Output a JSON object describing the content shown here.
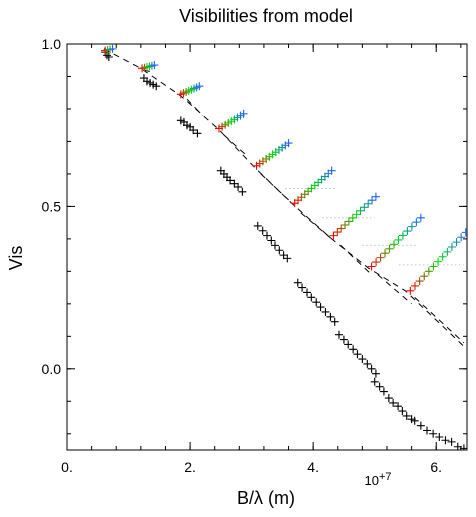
{
  "chart_data": {
    "type": "scatter",
    "title": "Visibilities from model",
    "xlabel": "B/λ (m)",
    "ylabel": "Vis",
    "x_multiplier": "10+7",
    "xlim": [
      0,
      6.5
    ],
    "ylim": [
      -0.25,
      1.0
    ],
    "xticks": [
      {
        "value": 0,
        "label": "0."
      },
      {
        "value": 2,
        "label": "2."
      },
      {
        "value": 4,
        "label": "4."
      },
      {
        "value": 6,
        "label": "6."
      }
    ],
    "yticks": [
      {
        "value": 0.0,
        "label": "0.0"
      },
      {
        "value": 0.5,
        "label": "0.5"
      },
      {
        "value": 1.0,
        "label": "1.0"
      }
    ],
    "grid": false,
    "legend": "none",
    "colors": {
      "black_series": "#000000",
      "dash_line": "#000000",
      "grad_start": "#ff0000",
      "grad_mid": "#00dd00",
      "grad_end": "#2060ff",
      "dotted": "#a0a0e0"
    },
    "series": [
      {
        "marker": "plus",
        "color": "#000000",
        "points": [
          [
            0.62,
            0.975
          ],
          [
            0.65,
            0.965
          ],
          [
            0.68,
            0.96
          ],
          [
            1.25,
            0.895
          ],
          [
            1.3,
            0.885
          ],
          [
            1.35,
            0.88
          ],
          [
            1.4,
            0.875
          ],
          [
            1.45,
            0.87
          ],
          [
            1.85,
            0.765
          ],
          [
            1.9,
            0.76
          ],
          [
            1.95,
            0.75
          ],
          [
            2.0,
            0.745
          ],
          [
            2.05,
            0.735
          ],
          [
            2.12,
            0.725
          ],
          [
            2.5,
            0.61
          ],
          [
            2.55,
            0.6
          ],
          [
            2.6,
            0.59
          ],
          [
            2.65,
            0.58
          ],
          [
            2.72,
            0.57
          ],
          [
            2.78,
            0.56
          ],
          [
            2.85,
            0.545
          ],
          [
            3.1,
            0.44
          ],
          [
            3.18,
            0.425
          ],
          [
            3.25,
            0.41
          ],
          [
            3.32,
            0.395
          ],
          [
            3.38,
            0.38
          ],
          [
            3.45,
            0.365
          ],
          [
            3.52,
            0.35
          ],
          [
            3.58,
            0.34
          ],
          [
            3.75,
            0.265
          ],
          [
            3.82,
            0.25
          ],
          [
            3.9,
            0.235
          ],
          [
            3.97,
            0.22
          ],
          [
            4.05,
            0.205
          ],
          [
            4.12,
            0.19
          ],
          [
            4.2,
            0.175
          ],
          [
            4.28,
            0.16
          ],
          [
            4.35,
            0.145
          ],
          [
            4.42,
            0.105
          ],
          [
            4.5,
            0.09
          ],
          [
            4.57,
            0.075
          ],
          [
            4.65,
            0.06
          ],
          [
            4.72,
            0.045
          ],
          [
            4.8,
            0.03
          ],
          [
            4.88,
            0.015
          ],
          [
            4.95,
            0.0
          ],
          [
            5.02,
            -0.015
          ],
          [
            5.0,
            -0.04
          ],
          [
            5.08,
            -0.055
          ],
          [
            5.15,
            -0.07
          ],
          [
            5.23,
            -0.09
          ],
          [
            5.3,
            -0.105
          ],
          [
            5.38,
            -0.115
          ],
          [
            5.45,
            -0.13
          ],
          [
            5.52,
            -0.145
          ],
          [
            5.6,
            -0.155
          ],
          [
            5.65,
            -0.16
          ],
          [
            5.75,
            -0.175
          ],
          [
            5.85,
            -0.19
          ],
          [
            5.95,
            -0.2
          ],
          [
            6.05,
            -0.21
          ],
          [
            6.15,
            -0.22
          ],
          [
            6.25,
            -0.225
          ],
          [
            6.35,
            -0.24
          ],
          [
            6.45,
            -0.245
          ]
        ]
      }
    ],
    "dashed_curve": [
      [
        0.6,
        0.985
      ],
      [
        1.2,
        0.925
      ],
      [
        1.85,
        0.84
      ],
      [
        2.45,
        0.74
      ],
      [
        3.05,
        0.62
      ],
      [
        3.65,
        0.51
      ],
      [
        4.3,
        0.4
      ],
      [
        4.9,
        0.31
      ],
      [
        5.5,
        0.24
      ],
      [
        6.5,
        0.06
      ]
    ],
    "dashed_segments": [
      [
        [
          1.25,
          0.92
        ],
        [
          1.35,
          0.915
        ]
      ],
      [
        [
          1.95,
          0.83
        ],
        [
          2.2,
          0.78
        ]
      ],
      [
        [
          2.55,
          0.72
        ],
        [
          2.9,
          0.66
        ]
      ],
      [
        [
          3.15,
          0.6
        ],
        [
          3.6,
          0.52
        ]
      ],
      [
        [
          3.8,
          0.48
        ],
        [
          4.3,
          0.4
        ]
      ],
      [
        [
          4.45,
          0.38
        ],
        [
          4.95,
          0.29
        ]
      ],
      [
        [
          5.05,
          0.29
        ],
        [
          5.6,
          0.2
        ]
      ],
      [
        [
          5.65,
          0.22
        ],
        [
          6.45,
          0.08
        ]
      ]
    ],
    "gradient_clusters": [
      {
        "start": [
          0.62,
          0.98
        ],
        "end": [
          0.74,
          0.985
        ],
        "n": 4
      },
      {
        "start": [
          1.22,
          0.925
        ],
        "end": [
          1.42,
          0.935
        ],
        "n": 6
      },
      {
        "start": [
          1.85,
          0.845
        ],
        "end": [
          2.15,
          0.87
        ],
        "n": 8
      },
      {
        "start": [
          2.47,
          0.74
        ],
        "end": [
          2.87,
          0.785
        ],
        "n": 9
      },
      {
        "start": [
          3.08,
          0.625
        ],
        "end": [
          3.6,
          0.695
        ],
        "n": 11
      },
      {
        "start": [
          3.7,
          0.51
        ],
        "end": [
          4.3,
          0.61
        ],
        "n": 12
      },
      {
        "start": [
          4.33,
          0.41
        ],
        "end": [
          5.02,
          0.53
        ],
        "n": 12
      },
      {
        "start": [
          4.95,
          0.315
        ],
        "end": [
          5.75,
          0.465
        ],
        "n": 12
      },
      {
        "start": [
          5.58,
          0.24
        ],
        "end": [
          6.48,
          0.42
        ],
        "n": 13
      }
    ],
    "dotted_segments": [
      [
        [
          3.55,
          0.555
        ],
        [
          4.35,
          0.555
        ]
      ],
      [
        [
          4.15,
          0.465
        ],
        [
          5.0,
          0.465
        ]
      ],
      [
        [
          4.8,
          0.38
        ],
        [
          5.7,
          0.38
        ]
      ],
      [
        [
          5.4,
          0.32
        ],
        [
          6.45,
          0.32
        ]
      ]
    ]
  }
}
